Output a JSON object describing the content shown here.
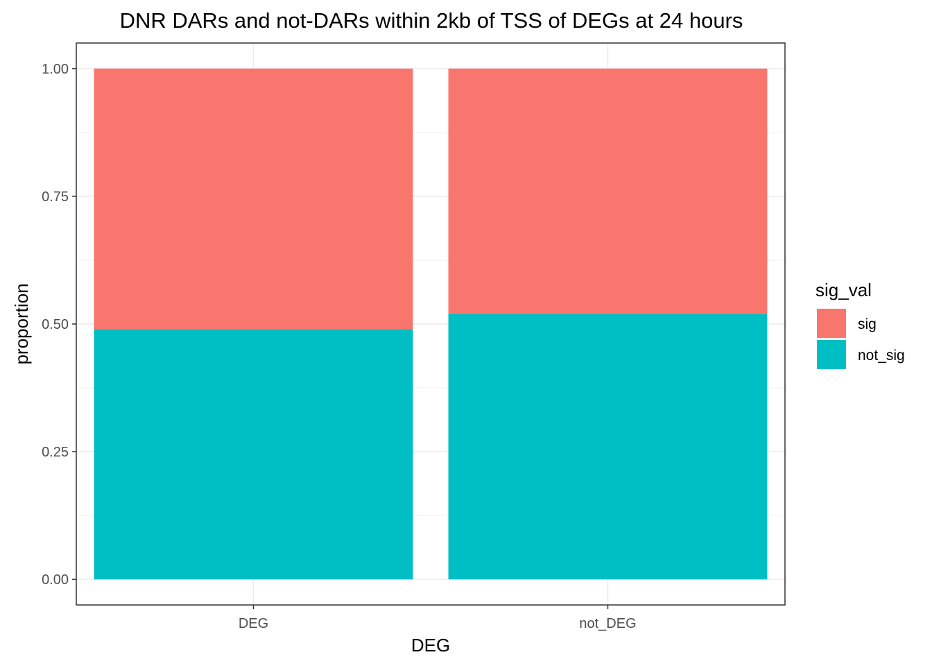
{
  "chart_data": {
    "type": "bar",
    "stacked": true,
    "title": "DNR DARs and not-DARs within 2kb of TSS of DEGs at 24 hours",
    "xlabel": "DEG",
    "ylabel": "proportion",
    "categories": [
      "DEG",
      "not_DEG"
    ],
    "series": [
      {
        "name": "not_sig",
        "values": [
          0.49,
          0.52
        ],
        "color": "#00BFC4"
      },
      {
        "name": "sig",
        "values": [
          0.51,
          0.48
        ],
        "color": "#F8766D"
      }
    ],
    "ylim": [
      -0.05,
      1.05
    ],
    "yticks": [
      "0.00",
      "0.25",
      "0.50",
      "0.75",
      "1.00"
    ],
    "grid": true,
    "legend": {
      "title": "sig_val",
      "position": "right",
      "entries": [
        {
          "label": "sig",
          "color": "#F8766D"
        },
        {
          "label": "not_sig",
          "color": "#00BFC4"
        }
      ]
    }
  }
}
